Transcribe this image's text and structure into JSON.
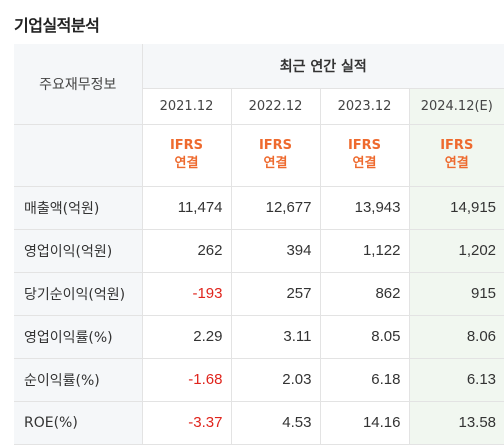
{
  "section": {
    "title": "기업실적분석"
  },
  "table": {
    "row_header_label": "주요재무정보",
    "group_label": "최근 연간 실적",
    "periods": [
      "2021.12",
      "2022.12",
      "2023.12",
      "2024.12(E)"
    ],
    "standard_line1": "IFRS",
    "standard_line2": "연결",
    "rows": [
      {
        "label": "매출액(억원)",
        "values": [
          "11,474",
          "12,677",
          "13,943",
          "14,915"
        ]
      },
      {
        "label": "영업이익(억원)",
        "values": [
          "262",
          "394",
          "1,122",
          "1,202"
        ]
      },
      {
        "label": "당기순이익(억원)",
        "values": [
          "-193",
          "257",
          "862",
          "915"
        ]
      },
      {
        "label": "영업이익률(%)",
        "values": [
          "2.29",
          "3.11",
          "8.05",
          "8.06"
        ]
      },
      {
        "label": "순이익률(%)",
        "values": [
          "-1.68",
          "2.03",
          "6.18",
          "6.13"
        ]
      },
      {
        "label": "ROE(%)",
        "values": [
          "-3.37",
          "4.53",
          "14.16",
          "13.58"
        ]
      }
    ]
  },
  "colors": {
    "negative": "#e0241c",
    "accent": "#ee6a2e",
    "estimate_bg": "#f1f7f0"
  }
}
